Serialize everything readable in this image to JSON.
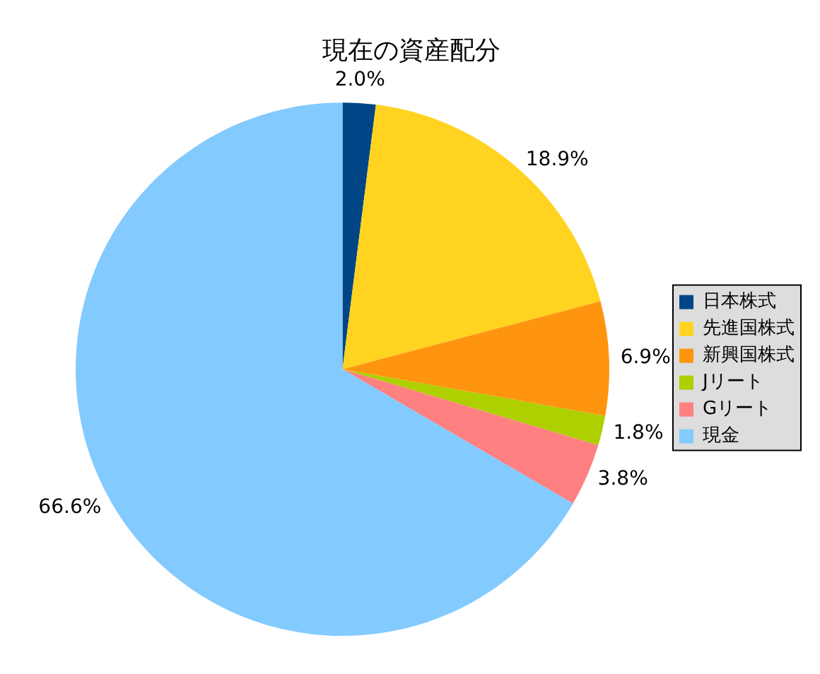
{
  "chart_data": {
    "type": "pie",
    "title": "現在の資産配分",
    "categories": [
      "日本株式",
      "先進国株式",
      "新興国株式",
      "Jリート",
      "Gリート",
      "現金"
    ],
    "values": [
      2.0,
      18.9,
      6.9,
      1.8,
      3.8,
      66.6
    ],
    "colors": [
      "#004586",
      "#ffd320",
      "#ff950e",
      "#aecf00",
      "#ff8080",
      "#83caff"
    ],
    "value_labels": [
      "2.0%",
      "18.9%",
      "6.9%",
      "1.8%",
      "3.8%",
      "66.6%"
    ],
    "legend": "right"
  }
}
